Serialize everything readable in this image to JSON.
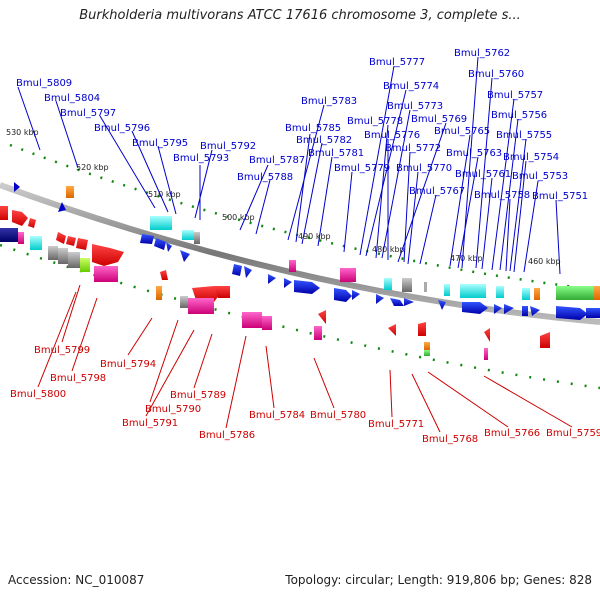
{
  "title": "Burkholderia multivorans ATCC 17616 chromosome 3, complete s...",
  "footer": {
    "accession": "Accession: NC_010087",
    "summary": "Topology: circular; Length: 919,806 bp; Genes: 828"
  },
  "colors": {
    "top_label": "#0000cc",
    "bottom_label": "#cc0000",
    "backbone": "#888888"
  },
  "scale_marks": [
    "530 kbp",
    "520 kbp",
    "510 kbp",
    "500 kbp",
    "490 kbp",
    "480 kbp",
    "470 kbp",
    "460 kbp"
  ],
  "top_labels": [
    "Bmul_5809",
    "Bmul_5804",
    "Bmul_5797",
    "Bmul_5796",
    "Bmul_5795",
    "Bmul_5792",
    "Bmul_5793",
    "Bmul_5787",
    "Bmul_5788",
    "Bmul_5783",
    "Bmul_5785",
    "Bmul_5782",
    "Bmul_5781",
    "Bmul_5779",
    "Bmul_5777",
    "Bmul_5774",
    "Bmul_5778",
    "Bmul_5773",
    "Bmul_5776",
    "Bmul_5769",
    "Bmul_5772",
    "Bmul_5770",
    "Bmul_5765",
    "Bmul_5767",
    "Bmul_5763",
    "Bmul_5762",
    "Bmul_5760",
    "Bmul_5761",
    "Bmul_5757",
    "Bmul_5756",
    "Bmul_5758",
    "Bmul_5755",
    "Bmul_5754",
    "Bmul_5753",
    "Bmul_5751"
  ],
  "bottom_labels": [
    "Bmul_5799",
    "Bmul_5800",
    "Bmul_5798",
    "Bmul_5794",
    "Bmul_5790",
    "Bmul_5789",
    "Bmul_5791",
    "Bmul_5786",
    "Bmul_5784",
    "Bmul_5780",
    "Bmul_5771",
    "Bmul_5768",
    "Bmul_5766",
    "Bmul_5759"
  ]
}
